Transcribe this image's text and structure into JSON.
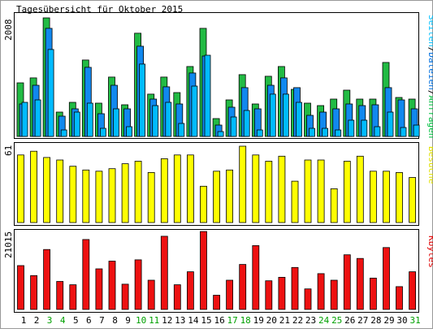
{
  "chart_data": {
    "type": "bar",
    "title": "Tagesübersicht für Oktober 2015",
    "categories": [
      "1",
      "2",
      "3",
      "4",
      "5",
      "6",
      "7",
      "8",
      "9",
      "10",
      "11",
      "12",
      "13",
      "14",
      "15",
      "16",
      "17",
      "18",
      "19",
      "20",
      "21",
      "22",
      "23",
      "24",
      "25",
      "26",
      "27",
      "28",
      "29",
      "30",
      "31"
    ],
    "weekend_days": [
      "3",
      "4",
      "10",
      "11",
      "17",
      "18",
      "24",
      "25",
      "31"
    ],
    "grid": false,
    "panels": [
      {
        "id": "top",
        "ymax_label": "2008",
        "ymax": 2008,
        "legend": [
          {
            "text": "Seiten",
            "color": "#00c0ff"
          },
          {
            "text": "Dateien",
            "color": "#0070e0"
          },
          {
            "text": "Anfragen",
            "color": "#00c040"
          }
        ],
        "series": [
          {
            "name": "Anfragen",
            "color": "#22bb44",
            "values": [
              908,
              991,
              2008,
              413,
              578,
              1294,
              564,
              1005,
              537,
              1748,
              716,
              1005,
              743,
              1184,
              1831,
              303,
              619,
              1046,
              550,
              1019,
              1184,
              798,
              564,
              523,
              633,
              784,
              633,
              633,
              1253,
              660,
              633
            ]
          },
          {
            "name": "Dateien",
            "color": "#1188ee",
            "values": [
              550,
              867,
              1831,
              344,
              468,
              1170,
              385,
              867,
              468,
              1528,
              633,
              840,
              550,
              1074,
              1362,
              193,
              495,
              826,
              468,
              867,
              991,
              826,
              358,
              413,
              468,
              550,
              523,
              536,
              826,
              619,
              468
            ]
          },
          {
            "name": "Seiten",
            "color": "#00bbff",
            "values": [
              578,
              619,
              1473,
              110,
              413,
              564,
              138,
              468,
              165,
              1225,
              523,
              578,
              220,
              853,
              1376,
              83,
              330,
              440,
              110,
              716,
              716,
              578,
              138,
              138,
              110,
              275,
              275,
              165,
              413,
              151,
              193
            ]
          }
        ]
      },
      {
        "id": "middle",
        "ymax_label": "61",
        "ymax": 61,
        "legend": [
          {
            "text": "Besuche",
            "color": "#e0e000"
          }
        ],
        "series": [
          {
            "name": "Besuche",
            "color": "#ffff00",
            "values": [
              54,
              57,
              52,
              50,
              45,
              42,
              41,
              43,
              47,
              49,
              40,
              51,
              54,
              54,
              29,
              41,
              42,
              61,
              54,
              49,
              53,
              33,
              50,
              50,
              27,
              49,
              53,
              41,
              41,
              40,
              36
            ]
          }
        ]
      },
      {
        "id": "bottom",
        "ymax_label": "21015",
        "ymax": 21015,
        "legend": [
          {
            "text": "Kbytes",
            "color": "#e00000"
          }
        ],
        "series": [
          {
            "name": "Kbytes",
            "color": "#ee1111",
            "values": [
              11820,
              9130,
              16150,
              7560,
              6660,
              18840,
              10940,
              13030,
              6800,
              13380,
              7890,
              19720,
              6660,
              10150,
              21015,
              3840,
              7890,
              12130,
              17200,
              7720,
              8660,
              11320,
              5540,
              9660,
              7890,
              14740,
              13740,
              8450,
              16670,
              6160,
              10150
            ]
          }
        ]
      }
    ]
  }
}
